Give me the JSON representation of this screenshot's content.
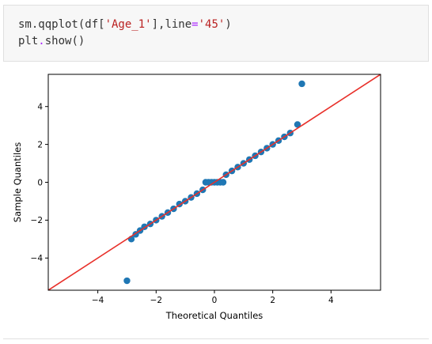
{
  "cell": {
    "code_lines": [
      {
        "parts": [
          {
            "t": "sm.qqplot(df[",
            "c": "plain"
          },
          {
            "t": "'Age_1'",
            "c": "str"
          },
          {
            "t": "],line",
            "c": "plain"
          },
          {
            "t": "=",
            "c": "op"
          },
          {
            "t": "'45'",
            "c": "str"
          },
          {
            "t": ")",
            "c": "plain"
          }
        ]
      },
      {
        "parts": [
          {
            "t": "plt",
            "c": "plain"
          },
          {
            "t": ".",
            "c": "op"
          },
          {
            "t": "show()",
            "c": "plain"
          }
        ]
      }
    ]
  },
  "chart_data": {
    "type": "scatter",
    "title": "",
    "xlabel": "Theoretical Quantiles",
    "ylabel": "Sample Quantiles",
    "xlim": [
      -5.7,
      5.7
    ],
    "ylim": [
      -5.7,
      5.7
    ],
    "xticks": [
      -4,
      -2,
      0,
      2,
      4
    ],
    "yticks": [
      -4,
      -2,
      0,
      2,
      4
    ],
    "xtick_labels": [
      "−4",
      "−2",
      "0",
      "2",
      "4"
    ],
    "ytick_labels": [
      "−4",
      "−2",
      "0",
      "2",
      "4"
    ],
    "grid": false,
    "reference_line": {
      "label": "45",
      "x": [
        -5.7,
        5.7
      ],
      "y": [
        -5.7,
        5.7
      ],
      "color": "#e8302a"
    },
    "point_color": "#1f77b4",
    "points": {
      "x": [
        -3.0,
        -2.85,
        -2.7,
        -2.55,
        -2.4,
        -2.2,
        -2.0,
        -1.8,
        -1.6,
        -1.4,
        -1.2,
        -1.0,
        -0.8,
        -0.6,
        -0.4,
        -0.3,
        -0.2,
        -0.1,
        0.0,
        0.1,
        0.2,
        0.3,
        0.4,
        0.6,
        0.8,
        1.0,
        1.2,
        1.4,
        1.6,
        1.8,
        2.0,
        2.2,
        2.4,
        2.6,
        2.85,
        3.0
      ],
      "y": [
        -5.2,
        -3.0,
        -2.75,
        -2.55,
        -2.35,
        -2.2,
        -2.0,
        -1.8,
        -1.6,
        -1.4,
        -1.15,
        -1.0,
        -0.8,
        -0.6,
        -0.4,
        0.0,
        0.0,
        0.0,
        0.0,
        0.0,
        0.0,
        0.0,
        0.4,
        0.6,
        0.8,
        1.0,
        1.2,
        1.4,
        1.6,
        1.8,
        2.0,
        2.2,
        2.4,
        2.6,
        3.05,
        5.2
      ]
    }
  }
}
